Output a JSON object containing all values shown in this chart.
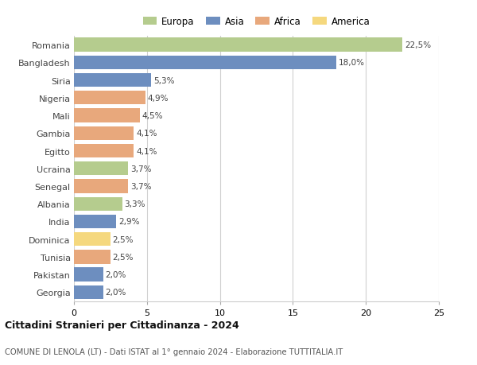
{
  "countries": [
    "Romania",
    "Bangladesh",
    "Siria",
    "Nigeria",
    "Mali",
    "Gambia",
    "Egitto",
    "Ucraina",
    "Senegal",
    "Albania",
    "India",
    "Dominica",
    "Tunisia",
    "Pakistan",
    "Georgia"
  ],
  "values": [
    22.5,
    18.0,
    5.3,
    4.9,
    4.5,
    4.1,
    4.1,
    3.7,
    3.7,
    3.3,
    2.9,
    2.5,
    2.5,
    2.0,
    2.0
  ],
  "labels": [
    "22,5%",
    "18,0%",
    "5,3%",
    "4,9%",
    "4,5%",
    "4,1%",
    "4,1%",
    "3,7%",
    "3,7%",
    "3,3%",
    "2,9%",
    "2,5%",
    "2,5%",
    "2,0%",
    "2,0%"
  ],
  "continents": [
    "Europa",
    "Asia",
    "Asia",
    "Africa",
    "Africa",
    "Africa",
    "Africa",
    "Europa",
    "Africa",
    "Europa",
    "Asia",
    "America",
    "Africa",
    "Asia",
    "Asia"
  ],
  "colors": {
    "Europa": "#b5cc8e",
    "Asia": "#6d8ebf",
    "Africa": "#e8a87c",
    "America": "#f5d87e"
  },
  "legend_order": [
    "Europa",
    "Asia",
    "Africa",
    "America"
  ],
  "title": "Cittadini Stranieri per Cittadinanza - 2024",
  "subtitle": "COMUNE DI LENOLA (LT) - Dati ISTAT al 1° gennaio 2024 - Elaborazione TUTTITALIA.IT",
  "xlim": [
    0,
    25
  ],
  "xticks": [
    0,
    5,
    10,
    15,
    20,
    25
  ],
  "bg_color": "#ffffff",
  "grid_color": "#d0d0d0",
  "bar_height": 0.78
}
